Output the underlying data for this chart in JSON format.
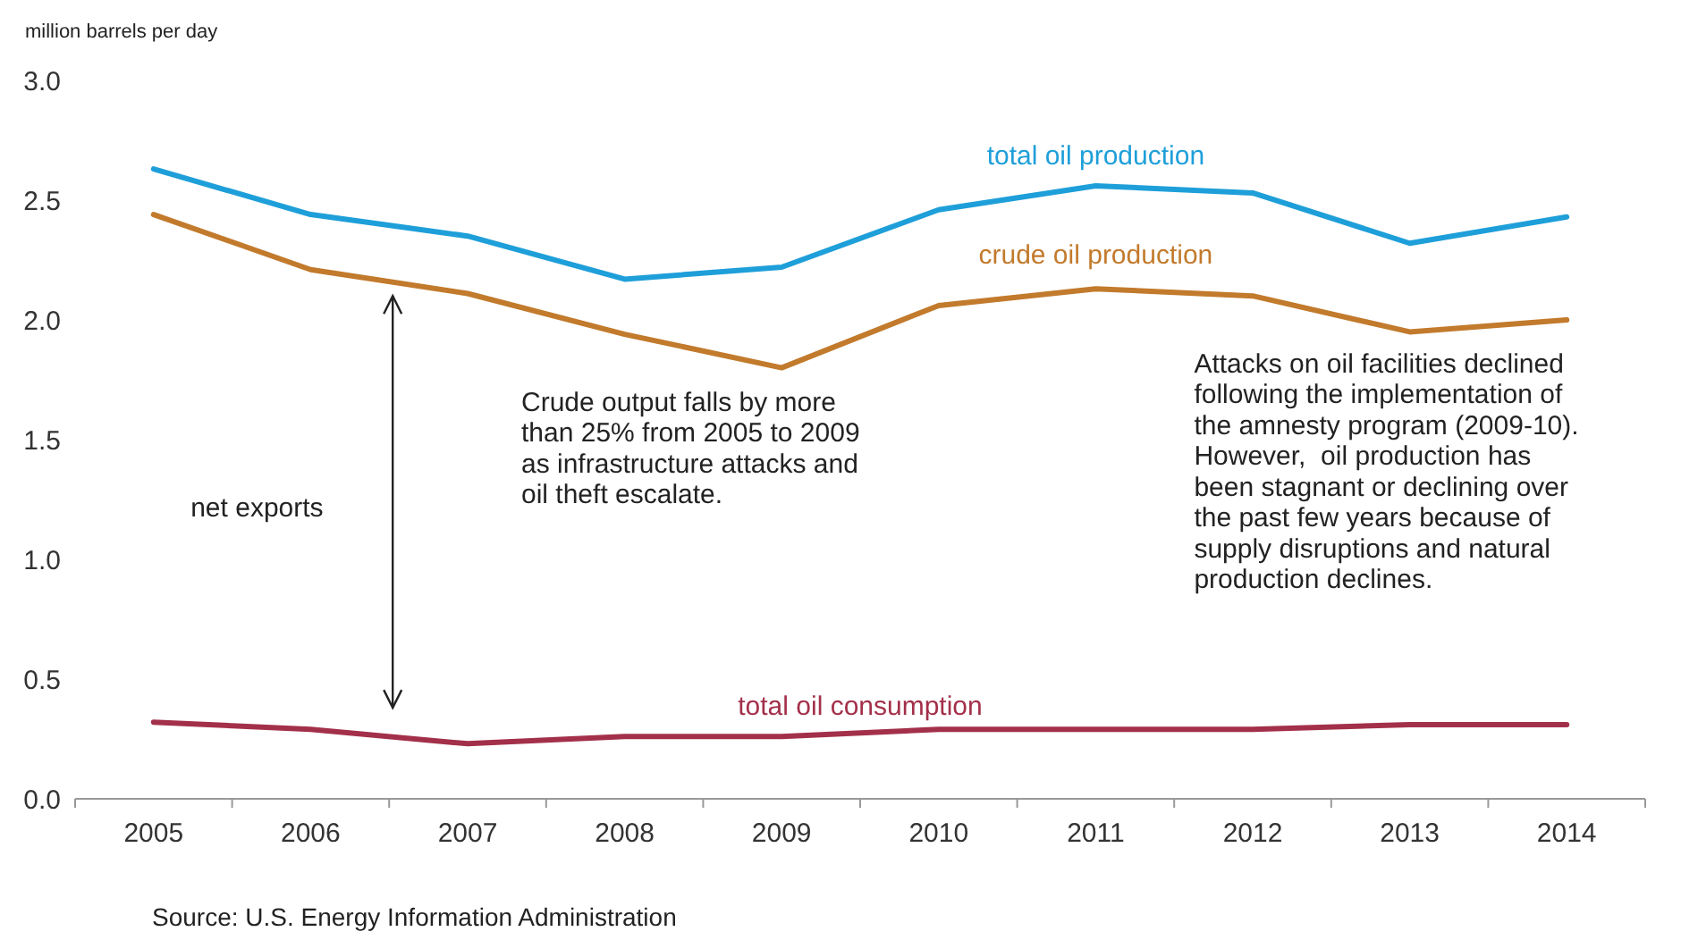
{
  "chart_data": {
    "type": "line",
    "ylabel": "million barrels per day",
    "categories": [
      "2005",
      "2006",
      "2007",
      "2008",
      "2009",
      "2010",
      "2011",
      "2012",
      "2013",
      "2014"
    ],
    "series": [
      {
        "name": "total oil production",
        "color": "#1e9fd9",
        "values": [
          2.63,
          2.44,
          2.35,
          2.17,
          2.22,
          2.46,
          2.56,
          2.53,
          2.32,
          2.43
        ]
      },
      {
        "name": "crude oil production",
        "color": "#c27a2c",
        "values": [
          2.44,
          2.21,
          2.11,
          1.94,
          1.8,
          2.06,
          2.13,
          2.1,
          1.95,
          2.0
        ]
      },
      {
        "name": "total oil consumption",
        "color": "#a3304a",
        "values": [
          0.32,
          0.29,
          0.23,
          0.26,
          0.26,
          0.29,
          0.29,
          0.29,
          0.31,
          0.31
        ]
      }
    ],
    "ylim": [
      0,
      3
    ],
    "yticks": [
      {
        "value": 0,
        "label": "0.0"
      },
      {
        "value": 0.5,
        "label": "0.5"
      },
      {
        "value": 1,
        "label": "1.0"
      },
      {
        "value": 1.5,
        "label": "1.5"
      },
      {
        "value": 2,
        "label": "2.0"
      },
      {
        "value": 2.5,
        "label": "2.5"
      },
      {
        "value": 3,
        "label": "3.0"
      }
    ],
    "grid": false,
    "marker": "none",
    "line_style": "solid",
    "annotations": [
      "net exports",
      "Crude output falls by more\nthan 25% from 2005 to 2009\nas infrastructure attacks and\noil theft escalate.",
      "Attacks on oil facilities declined\nfollowing the implementation of\nthe amnesty program (2009-10).\nHowever,  oil production has\nbeen stagnant or declining over\nthe past few years because of\nsupply disruptions and natural\nproduction declines.",
      "Source: U.S. Energy Information Administration"
    ]
  }
}
